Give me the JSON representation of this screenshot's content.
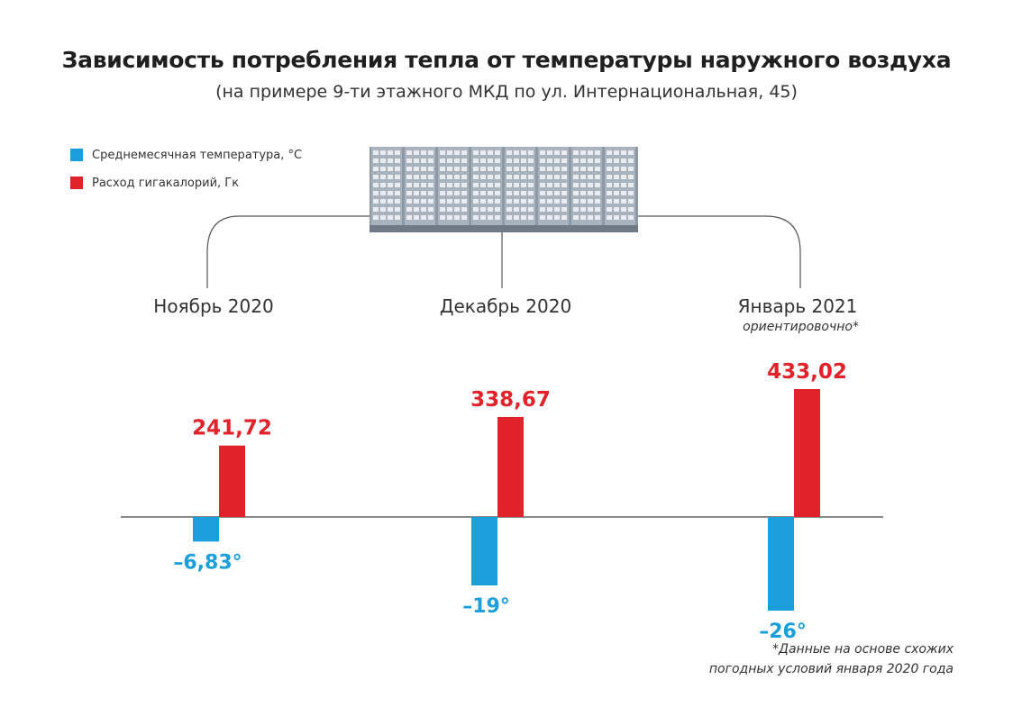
{
  "header": {
    "title": "Зависимость потребления тепла от температуры наружного воздуха",
    "subtitle": "(на примере 9-ти этажного МКД по ул. Интернациональная, 45)"
  },
  "legend": {
    "items": [
      {
        "label": "Среднемесячная температура, °С",
        "color": "#1a9fdc"
      },
      {
        "label": "Расход гигакалорий, Гк",
        "color": "#e1222a"
      }
    ]
  },
  "months": [
    {
      "label": "Ноябрь 2020",
      "note": ""
    },
    {
      "label": "Декабрь 2020",
      "note": ""
    },
    {
      "label": "Январь 2021",
      "note": "ориентировочно*"
    }
  ],
  "footnote": {
    "line1": "*Данные на основе схожих",
    "line2": "погодных условий января 2020 года"
  },
  "chart_data": {
    "type": "bar",
    "categories": [
      "Ноябрь 2020",
      "Декабрь 2020",
      "Январь 2021"
    ],
    "series": [
      {
        "name": "Среднемесячная температура, °С",
        "color": "#1a9fdc",
        "values": [
          -6.83,
          -19,
          -26
        ],
        "labels": [
          "–6,83°",
          "–19°",
          "–26°"
        ]
      },
      {
        "name": "Расход гигакалорий, Гк",
        "color": "#e1222a",
        "values": [
          241.72,
          338.67,
          433.02
        ],
        "labels": [
          "241,72",
          "338,67",
          "433,02"
        ]
      }
    ]
  }
}
